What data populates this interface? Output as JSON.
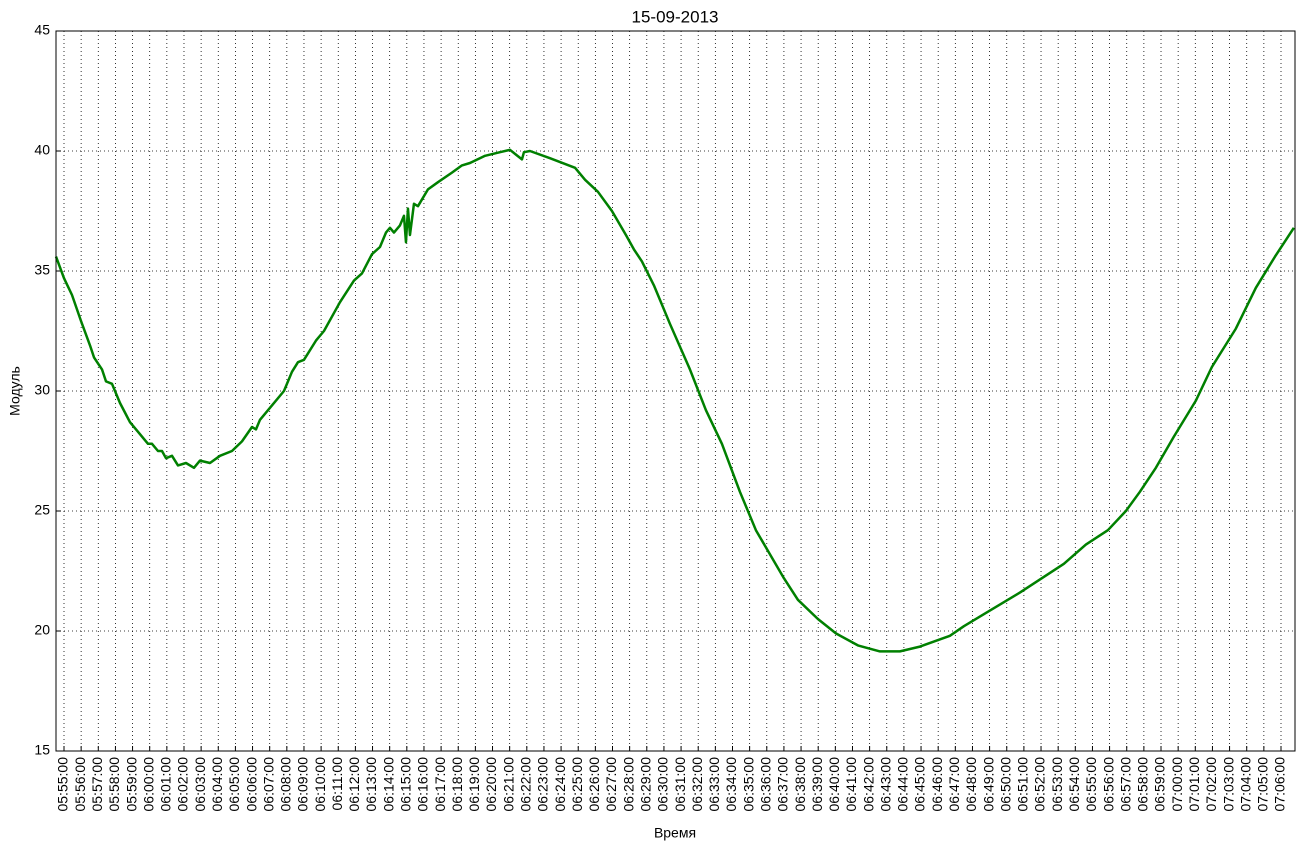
{
  "chart_data": {
    "type": "line",
    "title": "15-09-2013",
    "xlabel": "Время",
    "ylabel": "Модуль",
    "color": "#008000",
    "grid": true,
    "x": [
      "05:54:32",
      "05:55:00",
      "05:55:28",
      "05:56:00",
      "05:56:31",
      "05:56:45",
      "05:57:13",
      "05:57:27",
      "05:57:48",
      "05:58:16",
      "05:58:51",
      "05:59:26",
      "05:59:54",
      "06:00:08",
      "06:00:29",
      "06:00:43",
      "06:00:57",
      "06:01:18",
      "06:01:39",
      "06:02:07",
      "06:02:35",
      "06:02:56",
      "06:03:31",
      "06:04:06",
      "06:04:48",
      "06:05:23",
      "06:05:58",
      "06:06:12",
      "06:06:26",
      "06:07:01",
      "06:07:50",
      "06:08:18",
      "06:08:39",
      "06:09:00",
      "06:09:42",
      "06:10:10",
      "06:11:06",
      "06:11:55",
      "06:12:23",
      "06:12:58",
      "06:13:26",
      "06:13:47",
      "06:14:01",
      "06:14:15",
      "06:14:36",
      "06:14:50",
      "06:14:57",
      "06:15:04",
      "06:15:11",
      "06:15:25",
      "06:15:39",
      "06:16:14",
      "06:16:49",
      "06:17:38",
      "06:18:13",
      "06:18:41",
      "06:19:34",
      "06:20:26",
      "06:21:01",
      "06:21:22",
      "06:21:43",
      "06:21:50",
      "06:22:11",
      "06:23:21",
      "06:24:49",
      "06:25:24",
      "06:26:09",
      "06:26:58",
      "06:27:47",
      "06:28:15",
      "06:28:43",
      "06:29:25",
      "06:30:21",
      "06:31:31",
      "06:32:27",
      "06:33:23",
      "06:34:26",
      "06:35:22",
      "06:36:11",
      "06:37:00",
      "06:37:49",
      "06:38:59",
      "06:40:02",
      "06:41:19",
      "06:42:36",
      "06:43:46",
      "06:44:56",
      "06:46:41",
      "06:47:30",
      "06:48:26",
      "06:49:36",
      "06:50:46",
      "06:52:03",
      "06:53:20",
      "06:54:37",
      "06:55:54",
      "06:56:57",
      "06:57:46",
      "06:58:42",
      "06:59:45",
      "07:01:02",
      "07:01:58",
      "07:03:22",
      "07:04:32",
      "07:05:39",
      "07:06:45"
    ],
    "values": [
      35.6,
      34.7,
      34.0,
      32.9,
      31.9,
      31.4,
      30.9,
      30.4,
      30.3,
      29.5,
      28.7,
      28.2,
      27.8,
      27.8,
      27.5,
      27.5,
      27.2,
      27.3,
      26.9,
      27.0,
      26.8,
      27.1,
      27.0,
      27.3,
      27.5,
      27.9,
      28.5,
      28.4,
      28.8,
      29.3,
      30.0,
      30.8,
      31.2,
      31.3,
      32.1,
      32.5,
      33.7,
      34.6,
      34.9,
      35.7,
      36.0,
      36.6,
      36.8,
      36.6,
      36.9,
      37.3,
      36.2,
      37.6,
      36.5,
      37.8,
      37.7,
      38.4,
      38.7,
      39.1,
      39.4,
      39.5,
      39.8,
      39.95,
      40.05,
      39.85,
      39.65,
      39.95,
      40.0,
      39.7,
      39.3,
      38.8,
      38.3,
      37.5,
      36.5,
      35.9,
      35.4,
      34.4,
      32.8,
      30.9,
      29.2,
      27.8,
      25.8,
      24.2,
      23.2,
      22.2,
      21.3,
      20.5,
      19.9,
      19.4,
      19.15,
      19.15,
      19.35,
      19.8,
      20.2,
      20.6,
      21.1,
      21.6,
      22.2,
      22.8,
      23.6,
      24.2,
      25.0,
      25.8,
      26.8,
      28.1,
      29.6,
      31.0,
      32.6,
      34.3,
      35.6,
      36.8
    ],
    "xlim": [
      "05:54:32",
      "07:06:49"
    ],
    "xticks": [
      "05:55:00",
      "05:56:00",
      "05:57:00",
      "05:58:00",
      "05:59:00",
      "06:00:00",
      "06:01:00",
      "06:02:00",
      "06:03:00",
      "06:04:00",
      "06:05:00",
      "06:06:00",
      "06:07:00",
      "06:08:00",
      "06:09:00",
      "06:10:00",
      "06:11:00",
      "06:12:00",
      "06:13:00",
      "06:14:00",
      "06:15:00",
      "06:16:00",
      "06:17:00",
      "06:18:00",
      "06:19:00",
      "06:20:00",
      "06:21:00",
      "06:22:00",
      "06:23:00",
      "06:24:00",
      "06:25:00",
      "06:26:00",
      "06:27:00",
      "06:28:00",
      "06:29:00",
      "06:30:00",
      "06:31:00",
      "06:32:00",
      "06:33:00",
      "06:34:00",
      "06:35:00",
      "06:36:00",
      "06:37:00",
      "06:38:00",
      "06:39:00",
      "06:40:00",
      "06:41:00",
      "06:42:00",
      "06:43:00",
      "06:44:00",
      "06:45:00",
      "06:46:00",
      "06:47:00",
      "06:48:00",
      "06:49:00",
      "06:50:00",
      "06:51:00",
      "06:52:00",
      "06:53:00",
      "06:54:00",
      "06:55:00",
      "06:56:00",
      "06:57:00",
      "06:58:00",
      "06:59:00",
      "07:00:00",
      "07:01:00",
      "07:02:00",
      "07:03:00",
      "07:04:00",
      "07:05:00",
      "07:06:00"
    ],
    "ylim": [
      15,
      45
    ],
    "yticks": [
      15,
      20,
      25,
      30,
      35,
      40,
      45
    ]
  }
}
